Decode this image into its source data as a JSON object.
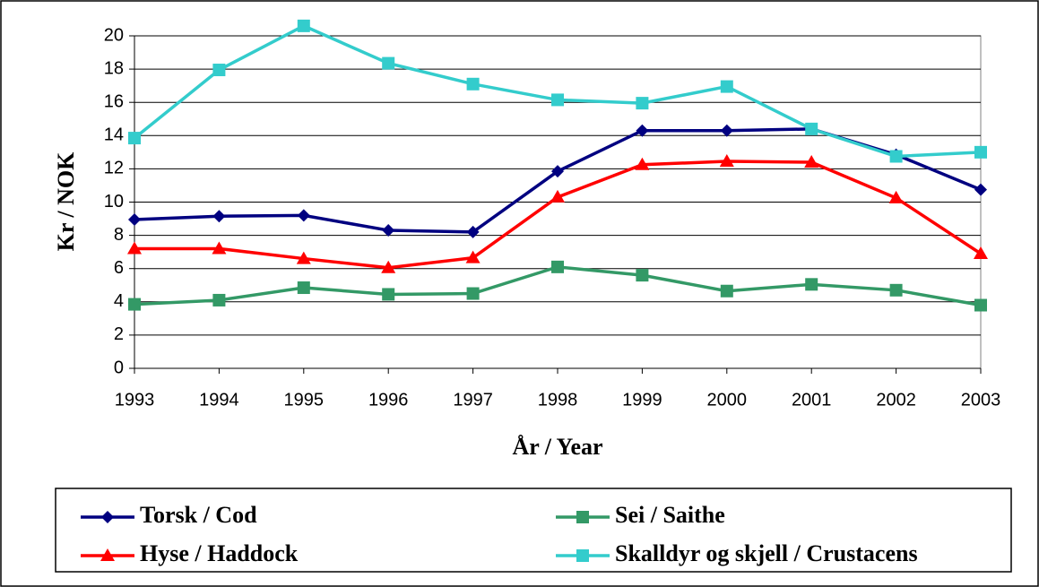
{
  "chart_data": {
    "type": "line",
    "x_label": "År / Year",
    "y_label": "Kr / NOK",
    "categories": [
      "1993",
      "1994",
      "1995",
      "1996",
      "1997",
      "1998",
      "1999",
      "2000",
      "2001",
      "2002",
      "2003"
    ],
    "series": [
      {
        "name": "Torsk / Cod",
        "color": "#000080",
        "marker": "diamond",
        "values": [
          8.95,
          9.15,
          9.2,
          8.3,
          8.2,
          11.85,
          14.3,
          14.3,
          14.4,
          12.85,
          10.75
        ]
      },
      {
        "name": "Hyse / Haddock",
        "color": "#ff0000",
        "marker": "triangle",
        "values": [
          7.2,
          7.2,
          6.6,
          6.05,
          6.65,
          10.3,
          12.25,
          12.45,
          12.4,
          10.25,
          6.9
        ]
      },
      {
        "name": "Sei / Saithe",
        "color": "#339966",
        "marker": "square",
        "values": [
          3.85,
          4.1,
          4.85,
          4.45,
          4.5,
          6.1,
          5.6,
          4.65,
          5.05,
          4.7,
          3.8
        ]
      },
      {
        "name": "Skalldyr og skjell / Crustacens",
        "color": "#33cccc",
        "marker": "square",
        "values": [
          13.85,
          17.95,
          20.6,
          18.35,
          17.1,
          16.15,
          15.95,
          16.95,
          14.4,
          12.75,
          13.0
        ]
      }
    ],
    "ylim": [
      0,
      20
    ],
    "yticks": [
      0,
      2,
      4,
      6,
      8,
      10,
      12,
      14,
      16,
      18,
      20
    ],
    "grid": true
  }
}
